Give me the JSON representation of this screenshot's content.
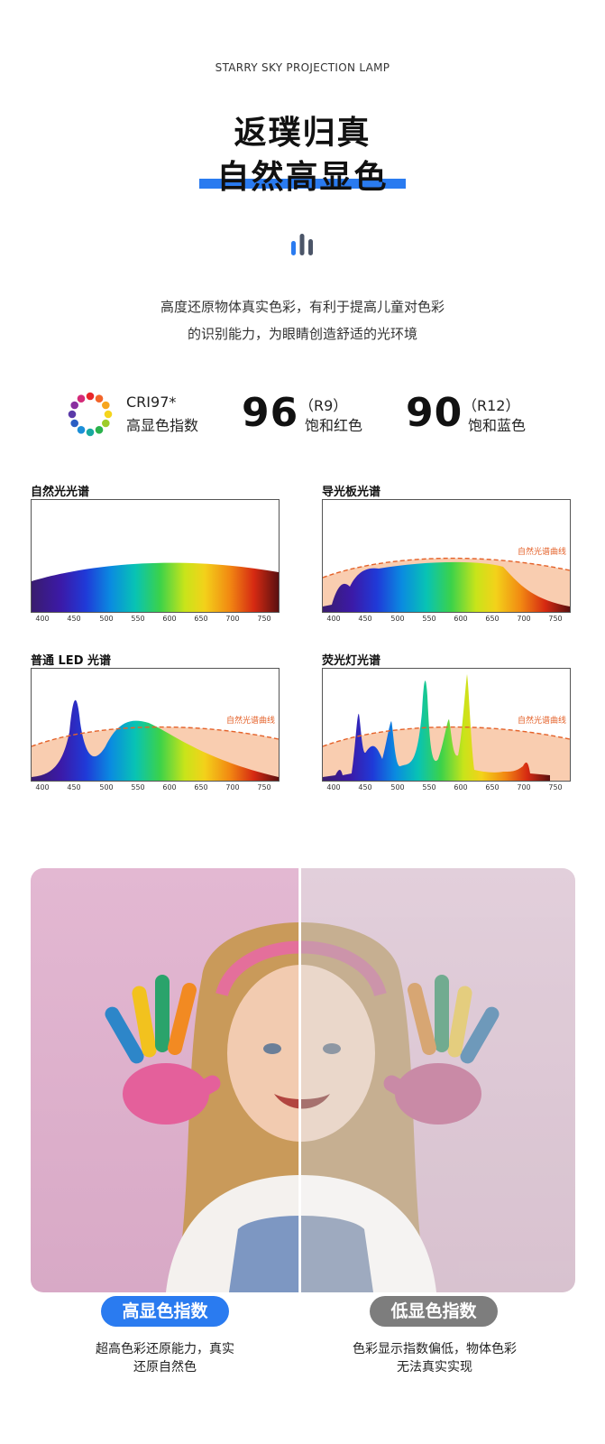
{
  "header": {
    "brand": "STARRY SKY PROJECTION LAMP",
    "title_line1": "返璞归真",
    "title_line2": "自然高显色",
    "accent_color": "#2a7bf0"
  },
  "description": {
    "line1": "高度还原物体真实色彩，有利于提高儿童对色彩",
    "line2": "的识别能力，为眼睛创造舒适的光环境"
  },
  "stats": {
    "cri": {
      "label": "CRI97*",
      "sublabel": "高显色指数",
      "icon": "color-wheel-icon"
    },
    "r9": {
      "value": "96",
      "code": "（R9）",
      "label": "饱和红色"
    },
    "r12": {
      "value": "90",
      "code": "（R12）",
      "label": "饱和蓝色"
    }
  },
  "spectra": {
    "tick_labels": [
      "400",
      "450",
      "500",
      "550",
      "600",
      "650",
      "700",
      "750"
    ],
    "curve_label": "自然光谱曲线",
    "panels": [
      {
        "title": "自然光光谱"
      },
      {
        "title": "导光板光谱"
      },
      {
        "title": "普通 LED 光谱"
      },
      {
        "title": "荧光灯光谱"
      }
    ]
  },
  "comparison": {
    "left": {
      "badge": "高显色指数",
      "caption_line1": "超高色彩还原能力，真实",
      "caption_line2": "还原自然色",
      "badge_color": "#2a7bf0"
    },
    "right": {
      "badge": "低显色指数",
      "caption_line1": "色彩显示指数偏低，物体色彩",
      "caption_line2": "无法真实实现",
      "badge_color": "#7d7d7d"
    }
  }
}
